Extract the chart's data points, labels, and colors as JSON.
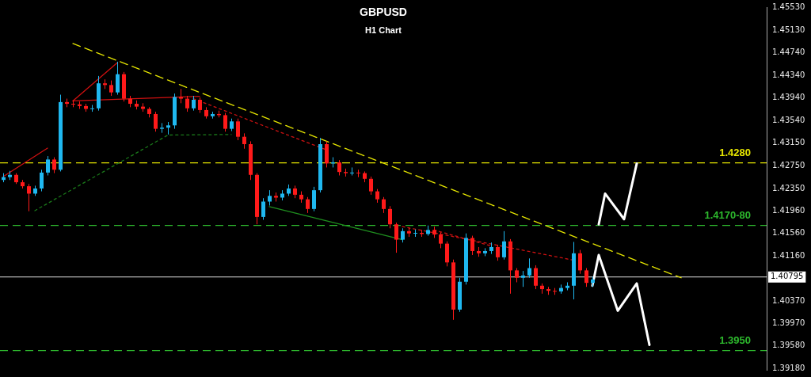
{
  "chart_data": {
    "type": "candlestick",
    "title": "GBPUSD",
    "subtitle": "H1 Chart",
    "categories": [
      null,
      null,
      null,
      null,
      null,
      null,
      null,
      null,
      null,
      null,
      null,
      null,
      null,
      null,
      null,
      null,
      null,
      null,
      null,
      null,
      null,
      null,
      null,
      null,
      null,
      null,
      null,
      null,
      null,
      null,
      null,
      null,
      null,
      null,
      null,
      null,
      null,
      null,
      null,
      null,
      null,
      null,
      null,
      null,
      null,
      null,
      null,
      null,
      null,
      null,
      null,
      null,
      null,
      null,
      null,
      null,
      null,
      null,
      null,
      null,
      null,
      null,
      null,
      null,
      null,
      null,
      null,
      null,
      null,
      null,
      null,
      null,
      null,
      null,
      null,
      null,
      null,
      null,
      null,
      null,
      null,
      null,
      null,
      null,
      null,
      null,
      null,
      null,
      null,
      null,
      null,
      null,
      null,
      null,
      null,
      null,
      null,
      null,
      null,
      null,
      null,
      null,
      null,
      null,
      null,
      null,
      null,
      null,
      null,
      null,
      null,
      null,
      null,
      null,
      null,
      null,
      null,
      null,
      null,
      null,
      null
    ],
    "ohlc": [
      [
        1.425,
        1.4262,
        1.4246,
        1.4255
      ],
      [
        1.4255,
        1.4266,
        1.425,
        1.4259
      ],
      [
        1.4259,
        1.4262,
        1.4243,
        1.4246
      ],
      [
        1.4246,
        1.425,
        1.4235,
        1.4239
      ],
      [
        1.4239,
        1.4243,
        1.4195,
        1.4226
      ],
      [
        1.4226,
        1.424,
        1.4222,
        1.4235
      ],
      [
        1.4235,
        1.4268,
        1.423,
        1.4263
      ],
      [
        1.4263,
        1.4292,
        1.4258,
        1.4286
      ],
      [
        1.4286,
        1.429,
        1.4262,
        1.4268
      ],
      [
        1.4268,
        1.44,
        1.4265,
        1.4387
      ],
      [
        1.4387,
        1.4393,
        1.4378,
        1.4384
      ],
      [
        1.4384,
        1.439,
        1.4378,
        1.4383
      ],
      [
        1.4383,
        1.4388,
        1.4375,
        1.438
      ],
      [
        1.438,
        1.4384,
        1.437,
        1.4375
      ],
      [
        1.4375,
        1.4382,
        1.437,
        1.4376
      ],
      [
        1.4376,
        1.4433,
        1.4372,
        1.442
      ],
      [
        1.442,
        1.4427,
        1.441,
        1.4417
      ],
      [
        1.4417,
        1.4425,
        1.4398,
        1.4404
      ],
      [
        1.4404,
        1.4458,
        1.44,
        1.4436
      ],
      [
        1.4436,
        1.444,
        1.4388,
        1.4393
      ],
      [
        1.4393,
        1.4398,
        1.4378,
        1.4384
      ],
      [
        1.4384,
        1.439,
        1.4374,
        1.4379
      ],
      [
        1.4379,
        1.4385,
        1.437,
        1.4375
      ],
      [
        1.4375,
        1.4378,
        1.436,
        1.4366
      ],
      [
        1.4366,
        1.437,
        1.4335,
        1.434
      ],
      [
        1.434,
        1.435,
        1.4333,
        1.4342
      ],
      [
        1.4342,
        1.4352,
        1.433,
        1.4346
      ],
      [
        1.4346,
        1.4402,
        1.434,
        1.4396
      ],
      [
        1.4396,
        1.441,
        1.4385,
        1.4393
      ],
      [
        1.4393,
        1.4398,
        1.437,
        1.4376
      ],
      [
        1.4376,
        1.4398,
        1.4372,
        1.4391
      ],
      [
        1.4391,
        1.4395,
        1.4368,
        1.4373
      ],
      [
        1.4373,
        1.4378,
        1.4358,
        1.4362
      ],
      [
        1.4362,
        1.437,
        1.4358,
        1.4366
      ],
      [
        1.4366,
        1.4372,
        1.436,
        1.4364
      ],
      [
        1.4364,
        1.4368,
        1.4335,
        1.434
      ],
      [
        1.434,
        1.4358,
        1.4336,
        1.4353
      ],
      [
        1.4353,
        1.4358,
        1.432,
        1.4326
      ],
      [
        1.4326,
        1.4332,
        1.4305,
        1.4313
      ],
      [
        1.4313,
        1.4318,
        1.425,
        1.4259
      ],
      [
        1.4259,
        1.4262,
        1.4172,
        1.4185
      ],
      [
        1.4185,
        1.4218,
        1.418,
        1.4212
      ],
      [
        1.4212,
        1.4232,
        1.4205,
        1.4222
      ],
      [
        1.4222,
        1.4228,
        1.4212,
        1.4219
      ],
      [
        1.4219,
        1.4232,
        1.4214,
        1.4226
      ],
      [
        1.4226,
        1.4242,
        1.4222,
        1.4235
      ],
      [
        1.4235,
        1.424,
        1.4218,
        1.4224
      ],
      [
        1.4224,
        1.423,
        1.421,
        1.4216
      ],
      [
        1.4216,
        1.422,
        1.4192,
        1.4199
      ],
      [
        1.4199,
        1.4238,
        1.4195,
        1.4232
      ],
      [
        1.4232,
        1.4324,
        1.4228,
        1.4313
      ],
      [
        1.4313,
        1.4318,
        1.4272,
        1.4279
      ],
      [
        1.4279,
        1.429,
        1.4272,
        1.4281
      ],
      [
        1.4281,
        1.4285,
        1.4258,
        1.4264
      ],
      [
        1.4264,
        1.427,
        1.4256,
        1.4262
      ],
      [
        1.4262,
        1.4272,
        1.4258,
        1.4263
      ],
      [
        1.4263,
        1.4268,
        1.4255,
        1.4262
      ],
      [
        1.4262,
        1.4265,
        1.4246,
        1.4252
      ],
      [
        1.4252,
        1.4256,
        1.4224,
        1.423
      ],
      [
        1.423,
        1.4234,
        1.421,
        1.4216
      ],
      [
        1.4216,
        1.422,
        1.4192,
        1.4199
      ],
      [
        1.4199,
        1.4204,
        1.4165,
        1.4172
      ],
      [
        1.4172,
        1.4175,
        1.4122,
        1.4145
      ],
      [
        1.4145,
        1.4165,
        1.414,
        1.416
      ],
      [
        1.416,
        1.4166,
        1.415,
        1.4156
      ],
      [
        1.4156,
        1.4163,
        1.415,
        1.4157
      ],
      [
        1.4157,
        1.4162,
        1.415,
        1.4155
      ],
      [
        1.4155,
        1.417,
        1.4152,
        1.4162
      ],
      [
        1.4162,
        1.4168,
        1.4148,
        1.4154
      ],
      [
        1.4154,
        1.4158,
        1.413,
        1.4138
      ],
      [
        1.4138,
        1.4142,
        1.4098,
        1.4105
      ],
      [
        1.4105,
        1.411,
        1.4004,
        1.4022
      ],
      [
        1.4022,
        1.4078,
        1.4018,
        1.4071
      ],
      [
        1.4071,
        1.4156,
        1.4066,
        1.4148
      ],
      [
        1.4148,
        1.4152,
        1.4118,
        1.4125
      ],
      [
        1.4125,
        1.4132,
        1.4115,
        1.4121
      ],
      [
        1.4121,
        1.413,
        1.4116,
        1.4125
      ],
      [
        1.4125,
        1.414,
        1.412,
        1.4132
      ],
      [
        1.4132,
        1.4136,
        1.4108,
        1.4114
      ],
      [
        1.4114,
        1.416,
        1.411,
        1.4142
      ],
      [
        1.4142,
        1.4146,
        1.405,
        1.4091
      ],
      [
        1.4091,
        1.4095,
        1.407,
        1.4078
      ],
      [
        1.4078,
        1.409,
        1.4062,
        1.4082
      ],
      [
        1.4082,
        1.4112,
        1.4078,
        1.4095
      ],
      [
        1.4095,
        1.41,
        1.4058,
        1.4064
      ],
      [
        1.4064,
        1.4068,
        1.405,
        1.4058
      ],
      [
        1.4058,
        1.4062,
        1.4048,
        1.4055
      ],
      [
        1.4055,
        1.406,
        1.4048,
        1.4054
      ],
      [
        1.4054,
        1.4066,
        1.405,
        1.406
      ],
      [
        1.406,
        1.407,
        1.4056,
        1.4064
      ],
      [
        1.4064,
        1.4141,
        1.404,
        1.4121
      ],
      [
        1.4121,
        1.4127,
        1.4085,
        1.4091
      ],
      [
        1.4091,
        1.4095,
        1.4062,
        1.4069
      ],
      [
        1.4069,
        1.408,
        1.4062,
        1.4075
      ],
      null,
      null,
      null,
      null,
      null,
      null,
      null,
      null,
      null,
      null,
      null,
      null,
      null,
      null,
      null,
      null,
      null,
      null,
      null,
      null,
      null,
      null,
      null,
      null,
      null,
      null,
      null
    ],
    "colors": [
      "#1fb8f0",
      "#1fb8f0",
      "#ff1a1a",
      "#ff1a1a",
      "#ff1a1a",
      "#1fb8f0",
      "#1fb8f0",
      "#1fb8f0",
      "#ff1a1a",
      "#1fb8f0",
      "#ff1a1a",
      "#ff1a1a",
      "#ff1a1a",
      "#ff1a1a",
      "#1fb8f0",
      "#1fb8f0",
      "#ff1a1a",
      "#ff1a1a",
      "#1fb8f0",
      "#ff1a1a",
      "#ff1a1a",
      "#ff1a1a",
      "#ff1a1a",
      "#ff1a1a",
      "#ff1a1a",
      "#1fb8f0",
      "#1fb8f0",
      "#1fb8f0",
      "#ff1a1a",
      "#ff1a1a",
      "#1fb8f0",
      "#ff1a1a",
      "#ff1a1a",
      "#1fb8f0",
      "#ff1a1a",
      "#ff1a1a",
      "#1fb8f0",
      "#ff1a1a",
      "#ff1a1a",
      "#ff1a1a",
      "#ff1a1a",
      "#1fb8f0",
      "#1fb8f0",
      "#ff1a1a",
      "#1fb8f0",
      "#1fb8f0",
      "#ff1a1a",
      "#ff1a1a",
      "#ff1a1a",
      "#1fb8f0",
      "#1fb8f0",
      "#ff1a1a",
      "#1fb8f0",
      "#ff1a1a",
      "#ff1a1a",
      "#1fb8f0",
      "#ff1a1a",
      "#ff1a1a",
      "#ff1a1a",
      "#ff1a1a",
      "#ff1a1a",
      "#ff1a1a",
      "#ff1a1a",
      "#1fb8f0",
      "#ff1a1a",
      "#1fb8f0",
      "#ff1a1a",
      "#1fb8f0",
      "#ff1a1a",
      "#ff1a1a",
      "#ff1a1a",
      "#ff1a1a",
      "#1fb8f0",
      "#1fb8f0",
      "#ff1a1a",
      "#ff1a1a",
      "#1fb8f0",
      "#1fb8f0",
      "#ff1a1a",
      "#1fb8f0",
      "#ff1a1a",
      "#ff1a1a",
      "#1fb8f0",
      "#1fb8f0",
      "#ff1a1a",
      "#ff1a1a",
      "#ff1a1a",
      "#ff1a1a",
      "#1fb8f0",
      "#1fb8f0",
      "#1fb8f0",
      "#ff1a1a",
      "#ff1a1a",
      "#1fb8f0",
      null,
      null,
      null,
      null,
      null,
      null,
      null,
      null,
      null,
      null,
      null,
      null,
      null,
      null,
      null,
      null,
      null,
      null,
      null,
      null,
      null,
      null,
      null,
      null,
      null,
      null,
      null
    ],
    "series": [
      {
        "type": "line",
        "color": "#e6e600",
        "line_style": "dashed",
        "values": [
          null,
          null,
          null,
          null,
          null,
          null,
          null,
          null,
          null,
          null,
          null,
          1.449,
          null,
          null,
          null,
          null,
          null,
          null,
          null,
          null,
          null,
          null,
          null,
          null,
          null,
          null,
          null,
          null,
          null,
          null,
          null,
          null,
          null,
          null,
          null,
          null,
          null,
          null,
          null,
          null,
          null,
          null,
          null,
          null,
          null,
          null,
          null,
          null,
          null,
          null,
          null,
          null,
          null,
          null,
          null,
          null,
          null,
          null,
          null,
          null,
          null,
          null,
          null,
          null,
          null,
          null,
          null,
          null,
          null,
          null,
          null,
          null,
          null,
          null,
          null,
          null,
          null,
          null,
          null,
          null,
          null,
          null,
          null,
          null,
          null,
          null,
          null,
          null,
          null,
          null,
          null,
          null,
          null,
          null,
          null,
          null,
          null,
          null,
          null,
          null,
          null,
          null,
          null,
          null,
          null,
          null,
          null,
          1.4078,
          null,
          null,
          null,
          null,
          null,
          null,
          null,
          null,
          null,
          null,
          null,
          null,
          null
        ]
      },
      {
        "type": "line",
        "color": "#cc1111",
        "line_style": "dotted",
        "values": [
          null,
          null,
          null,
          null,
          null,
          null,
          null,
          null,
          null,
          null,
          null,
          null,
          null,
          null,
          null,
          null,
          null,
          null,
          null,
          null,
          null,
          null,
          null,
          null,
          null,
          null,
          null,
          null,
          null,
          null,
          1.4393,
          null,
          null,
          null,
          null,
          null,
          null,
          null,
          null,
          null,
          null,
          null,
          null,
          null,
          null,
          null,
          null,
          null,
          null,
          null,
          null,
          1.4303,
          null,
          null,
          null,
          null,
          null,
          null,
          null,
          null,
          null,
          null,
          null,
          null,
          null,
          null,
          null,
          null,
          null,
          null,
          null,
          null,
          null,
          null,
          null,
          null,
          null,
          null,
          null,
          null,
          null,
          null,
          null,
          null,
          null,
          null,
          null,
          null,
          null,
          null,
          null,
          null,
          null,
          null,
          null,
          null,
          null,
          null,
          null,
          null,
          null,
          null,
          null,
          null,
          null,
          null,
          null,
          null,
          null,
          null,
          null,
          null,
          null,
          null,
          null,
          null,
          null,
          null,
          null,
          null,
          null
        ]
      },
      {
        "type": "line",
        "color": "#cc1111",
        "line_style": "dotted",
        "values": [
          null,
          null,
          null,
          null,
          null,
          null,
          null,
          null,
          null,
          null,
          null,
          null,
          null,
          null,
          null,
          null,
          null,
          null,
          null,
          null,
          null,
          null,
          null,
          null,
          null,
          null,
          null,
          null,
          null,
          null,
          null,
          null,
          null,
          null,
          null,
          null,
          null,
          null,
          null,
          null,
          null,
          null,
          null,
          null,
          null,
          null,
          null,
          null,
          null,
          null,
          null,
          null,
          null,
          null,
          null,
          null,
          null,
          null,
          null,
          null,
          null,
          null,
          null,
          1.4168,
          null,
          null,
          null,
          null,
          null,
          null,
          null,
          null,
          null,
          null,
          null,
          null,
          null,
          null,
          null,
          null,
          null,
          null,
          null,
          null,
          null,
          null,
          null,
          null,
          null,
          null,
          1.4109,
          null,
          null,
          null,
          null,
          null,
          null,
          null,
          null,
          null,
          null,
          null,
          null,
          null,
          null,
          null,
          null,
          null,
          null,
          null,
          null,
          null,
          null,
          null,
          null,
          null,
          null,
          null,
          null,
          null,
          null
        ]
      },
      {
        "type": "line",
        "color": "#cc1111",
        "line_style": "dotted",
        "values": [
          null,
          null,
          null,
          null,
          null,
          null,
          null,
          null,
          null,
          null,
          null,
          null,
          null,
          null,
          null,
          null,
          null,
          null,
          null,
          null,
          null,
          null,
          null,
          null,
          null,
          null,
          null,
          null,
          null,
          null,
          null,
          null,
          null,
          null,
          null,
          null,
          null,
          null,
          null,
          null,
          null,
          null,
          null,
          null,
          null,
          null,
          null,
          null,
          null,
          null,
          null,
          null,
          null,
          null,
          null,
          null,
          null,
          null,
          null,
          null,
          null,
          null,
          null,
          null,
          null,
          null,
          null,
          null,
          1.4162,
          null,
          null,
          null,
          null,
          null,
          null,
          null,
          null,
          1.4134,
          null,
          null,
          null,
          null,
          null,
          null,
          null,
          null,
          null,
          null,
          null,
          null,
          null,
          null,
          null,
          null,
          null,
          null,
          null,
          null,
          null,
          null,
          null,
          null,
          null,
          null,
          null,
          null,
          null,
          null,
          null,
          null,
          null,
          null,
          null,
          null,
          null,
          null,
          null,
          null,
          null,
          null,
          null
        ]
      },
      {
        "type": "line",
        "color": "#1a7a1a",
        "line_style": "dotted",
        "values": [
          null,
          null,
          null,
          null,
          null,
          1.4196,
          null,
          null,
          null,
          null,
          null,
          null,
          null,
          null,
          null,
          null,
          null,
          null,
          null,
          null,
          null,
          null,
          null,
          null,
          null,
          null,
          1.4329,
          null,
          null,
          null,
          null,
          null,
          null,
          null,
          null,
          null,
          1.433,
          null,
          null,
          null,
          null,
          null,
          null,
          null,
          null,
          null,
          null,
          null,
          null,
          null,
          null,
          null,
          null,
          null,
          null,
          null,
          null,
          null,
          null,
          null,
          null,
          null,
          null,
          null,
          null,
          null,
          null,
          null,
          null,
          null,
          null,
          null,
          null,
          null,
          null,
          null,
          null,
          null,
          null,
          null,
          null,
          null,
          null,
          null,
          null,
          null,
          null,
          null,
          null,
          null,
          null,
          null,
          null,
          null,
          null,
          null,
          null,
          null,
          null,
          null,
          null,
          null,
          null,
          null,
          null,
          null,
          null,
          null,
          null,
          null,
          null,
          null,
          null,
          null,
          null,
          null,
          null,
          null,
          null,
          null,
          null
        ]
      },
      {
        "type": "line",
        "color": "#1f8f1f",
        "line_style": "solid",
        "values": [
          null,
          null,
          null,
          null,
          null,
          null,
          null,
          null,
          null,
          null,
          null,
          null,
          null,
          null,
          null,
          null,
          null,
          null,
          null,
          null,
          null,
          null,
          null,
          null,
          null,
          null,
          null,
          null,
          null,
          null,
          null,
          null,
          null,
          null,
          null,
          null,
          null,
          null,
          null,
          null,
          null,
          null,
          1.4203,
          null,
          null,
          null,
          null,
          null,
          null,
          null,
          null,
          null,
          null,
          null,
          null,
          null,
          null,
          null,
          null,
          null,
          null,
          null,
          null,
          1.4145,
          null,
          null,
          null,
          null,
          null,
          null,
          null,
          null,
          null,
          null,
          null,
          null,
          null,
          null,
          null,
          null,
          null,
          null,
          null,
          null,
          null,
          null,
          null,
          null,
          null,
          null,
          null,
          null,
          null,
          null,
          null,
          null,
          null,
          null,
          null,
          null,
          null,
          null,
          null,
          null,
          null,
          null,
          null,
          null,
          null,
          null,
          null,
          null,
          null,
          null,
          null,
          null,
          null,
          null,
          null,
          null,
          null
        ]
      },
      {
        "type": "line",
        "color": "#d01010",
        "line_style": "solid",
        "values": [
          1.4256,
          null,
          null,
          null,
          null,
          null,
          null,
          1.4306,
          null,
          null,
          null,
          null,
          null,
          null,
          null,
          null,
          null,
          null,
          null,
          null,
          null,
          null,
          null,
          null,
          null,
          null,
          null,
          null,
          null,
          null,
          null,
          null,
          null,
          null,
          null,
          null,
          null,
          null,
          null,
          null,
          null,
          null,
          null,
          null,
          null,
          null,
          null,
          null,
          null,
          null,
          null,
          null,
          null,
          null,
          null,
          null,
          null,
          null,
          null,
          null,
          null,
          null,
          null,
          null,
          null,
          null,
          null,
          null,
          null,
          null,
          null,
          null,
          null,
          null,
          null,
          null,
          null,
          null,
          null,
          null,
          null,
          null,
          null,
          null,
          null,
          null,
          null,
          null,
          null,
          null,
          null,
          null,
          null,
          null,
          null,
          null,
          null,
          null,
          null,
          null,
          null,
          null,
          null,
          null,
          null,
          null,
          null,
          null,
          null,
          null,
          null,
          null,
          null,
          null,
          null,
          null,
          null,
          null,
          null,
          null,
          null
        ]
      },
      {
        "type": "line",
        "color": "#d01010",
        "line_style": "solid",
        "values": [
          null,
          null,
          null,
          null,
          null,
          null,
          null,
          null,
          null,
          null,
          null,
          1.4389,
          null,
          null,
          null,
          null,
          null,
          null,
          1.4456,
          null,
          null,
          null,
          null,
          null,
          null,
          null,
          null,
          null,
          null,
          null,
          null,
          null,
          null,
          null,
          null,
          null,
          null,
          null,
          null,
          null,
          null,
          null,
          null,
          null,
          null,
          null,
          null,
          null,
          null,
          null,
          null,
          null,
          null,
          null,
          null,
          null,
          null,
          null,
          null,
          null,
          null,
          null,
          null,
          null,
          null,
          null,
          null,
          null,
          null,
          null,
          null,
          null,
          null,
          null,
          null,
          null,
          null,
          null,
          null,
          null,
          null,
          null,
          null,
          null,
          null,
          null,
          null,
          null,
          null,
          null,
          null,
          null,
          null,
          null,
          null,
          null,
          null,
          null,
          null,
          null,
          null,
          null,
          null,
          null,
          null,
          null,
          null,
          null,
          null,
          null,
          null,
          null,
          null,
          null,
          null,
          null,
          null,
          null,
          null,
          null,
          null
        ]
      },
      {
        "type": "line",
        "color": "#d01010",
        "line_style": "solid",
        "values": [
          null,
          null,
          null,
          null,
          null,
          null,
          null,
          null,
          null,
          null,
          null,
          1.4389,
          null,
          null,
          null,
          null,
          null,
          null,
          null,
          null,
          null,
          null,
          null,
          null,
          null,
          null,
          null,
          null,
          null,
          null,
          null,
          1.4397,
          null,
          null,
          null,
          null,
          null,
          null,
          null,
          null,
          null,
          null,
          null,
          null,
          null,
          null,
          null,
          null,
          null,
          null,
          null,
          null,
          null,
          null,
          null,
          null,
          null,
          null,
          null,
          null,
          null,
          null,
          null,
          null,
          null,
          null,
          null,
          null,
          null,
          null,
          null,
          null,
          null,
          null,
          null,
          null,
          null,
          null,
          null,
          null,
          null,
          null,
          null,
          null,
          null,
          null,
          null,
          null,
          null,
          null,
          null,
          null,
          null,
          null,
          null,
          null,
          null,
          null,
          null,
          null,
          null,
          null,
          null,
          null,
          null,
          null,
          null,
          null,
          null,
          null,
          null,
          null,
          null,
          null,
          null,
          null,
          null,
          null,
          null,
          null,
          null
        ]
      },
      {
        "type": "line",
        "color": "#ffffff",
        "line_style": "solid",
        "values": [
          null,
          null,
          null,
          null,
          null,
          null,
          null,
          null,
          null,
          null,
          null,
          null,
          null,
          null,
          null,
          null,
          null,
          null,
          null,
          null,
          null,
          null,
          null,
          null,
          null,
          null,
          null,
          null,
          null,
          null,
          null,
          null,
          null,
          null,
          null,
          null,
          null,
          null,
          null,
          null,
          null,
          null,
          null,
          null,
          null,
          null,
          null,
          null,
          null,
          null,
          null,
          null,
          null,
          null,
          null,
          null,
          null,
          null,
          null,
          null,
          null,
          null,
          null,
          null,
          null,
          null,
          null,
          null,
          null,
          null,
          null,
          null,
          null,
          null,
          null,
          null,
          null,
          null,
          null,
          null,
          null,
          null,
          null,
          null,
          null,
          null,
          null,
          null,
          null,
          null,
          null,
          null,
          null,
          null,
          1.4172,
          1.4226,
          null,
          null,
          1.4181,
          null,
          1.4279,
          null,
          null,
          null,
          null,
          null,
          null,
          null,
          null,
          null,
          null,
          null,
          null,
          null,
          null,
          null,
          null,
          null,
          null,
          null,
          null
        ]
      },
      {
        "type": "line",
        "color": "#ffffff",
        "line_style": "solid",
        "values": [
          null,
          null,
          null,
          null,
          null,
          null,
          null,
          null,
          null,
          null,
          null,
          null,
          null,
          null,
          null,
          null,
          null,
          null,
          null,
          null,
          null,
          null,
          null,
          null,
          null,
          null,
          null,
          null,
          null,
          null,
          null,
          null,
          null,
          null,
          null,
          null,
          null,
          null,
          null,
          null,
          null,
          null,
          null,
          null,
          null,
          null,
          null,
          null,
          null,
          null,
          null,
          null,
          null,
          null,
          null,
          null,
          null,
          null,
          null,
          null,
          null,
          null,
          null,
          null,
          null,
          null,
          null,
          null,
          null,
          null,
          null,
          null,
          null,
          null,
          null,
          null,
          null,
          null,
          null,
          null,
          null,
          null,
          null,
          null,
          null,
          null,
          null,
          null,
          null,
          null,
          null,
          null,
          null,
          1.4064,
          1.4118,
          null,
          null,
          1.402,
          null,
          null,
          1.4068,
          null,
          1.396,
          null,
          null,
          null,
          null,
          null,
          null,
          null,
          null,
          null,
          null,
          null,
          null,
          null,
          null,
          null,
          null,
          null,
          null
        ]
      }
    ],
    "ref_lines": [
      {
        "axis": "y",
        "value": 1.428,
        "label": "1.4280",
        "color": "#e6e600",
        "line_style": "dashed"
      },
      {
        "axis": "y",
        "value": 1.417,
        "label": "1.4170-80",
        "color": "#2db82d",
        "line_style": "dashed"
      },
      {
        "axis": "y",
        "value": 1.395,
        "label": "1.3950",
        "color": "#2db82d",
        "line_style": "dashed"
      },
      {
        "axis": "y",
        "value": 1.40795,
        "label": "1.40795",
        "color": "#b4b4b4",
        "line_style": "solid"
      }
    ],
    "ylim": [
      1.3916,
      1.4554
    ],
    "yticks": [
      {
        "value": 1.4553,
        "label": "1.45530"
      },
      {
        "value": 1.4513,
        "label": "1.45130"
      },
      {
        "value": 1.4474,
        "label": "1.44740"
      },
      {
        "value": 1.4434,
        "label": "1.44340"
      },
      {
        "value": 1.4394,
        "label": "1.43940"
      },
      {
        "value": 1.4354,
        "label": "1.43540"
      },
      {
        "value": 1.4315,
        "label": "1.43150"
      },
      {
        "value": 1.4275,
        "label": "1.42750"
      },
      {
        "value": 1.4235,
        "label": "1.42350"
      },
      {
        "value": 1.4196,
        "label": "1.41960"
      },
      {
        "value": 1.4156,
        "label": "1.41560"
      },
      {
        "value": 1.4116,
        "label": "1.41160"
      },
      {
        "value": 1.4037,
        "label": "1.40370"
      },
      {
        "value": 1.3997,
        "label": "1.39970"
      },
      {
        "value": 1.3958,
        "label": "1.39580"
      },
      {
        "value": 1.3918,
        "label": "1.39180"
      }
    ],
    "tick_labels": "y",
    "grid": false,
    "legend": false
  }
}
